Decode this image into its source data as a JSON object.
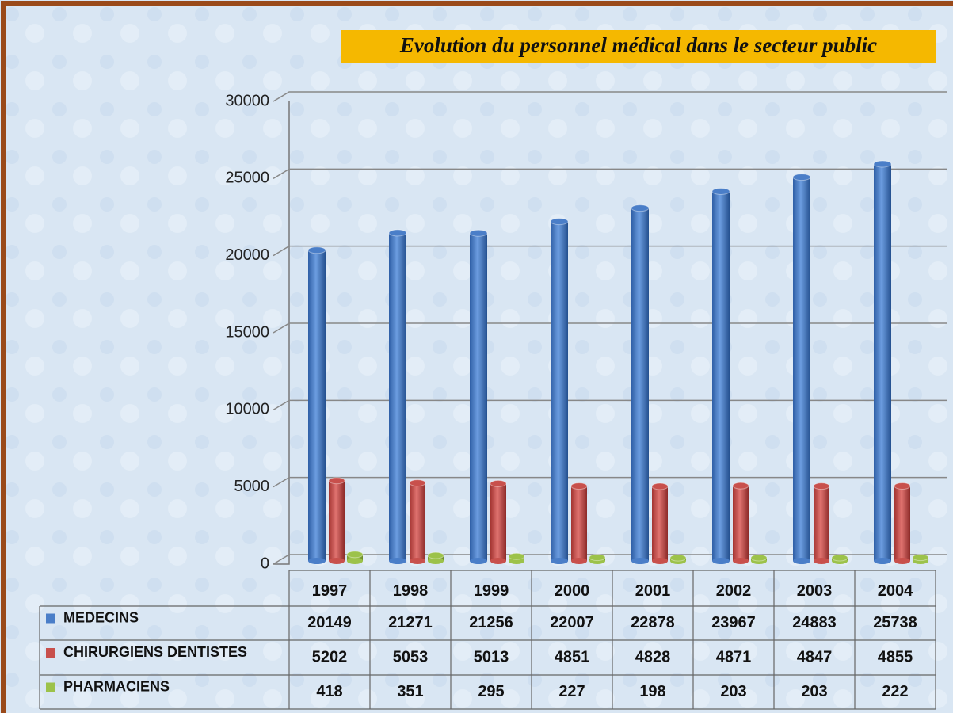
{
  "chart_data": {
    "type": "bar",
    "title": "Evolution du personnel médical dans le secteur public",
    "categories": [
      "1997",
      "1998",
      "1999",
      "2000",
      "2001",
      "2002",
      "2003",
      "2004"
    ],
    "series": [
      {
        "name": "MEDECINS",
        "color": "#4a7ec8",
        "values": [
          20149,
          21271,
          21256,
          22007,
          22878,
          23967,
          24883,
          25738
        ]
      },
      {
        "name": "CHIRURGIENS DENTISTES",
        "color": "#c8504c",
        "values": [
          5202,
          5053,
          5013,
          4851,
          4828,
          4871,
          4847,
          4855
        ]
      },
      {
        "name": "PHARMACIENS",
        "color": "#9cc24a",
        "values": [
          418,
          351,
          295,
          227,
          198,
          203,
          203,
          222
        ]
      }
    ],
    "ylim": [
      0,
      30000
    ],
    "yticks": [
      0,
      5000,
      10000,
      15000,
      20000,
      25000,
      30000
    ],
    "grid": true
  }
}
